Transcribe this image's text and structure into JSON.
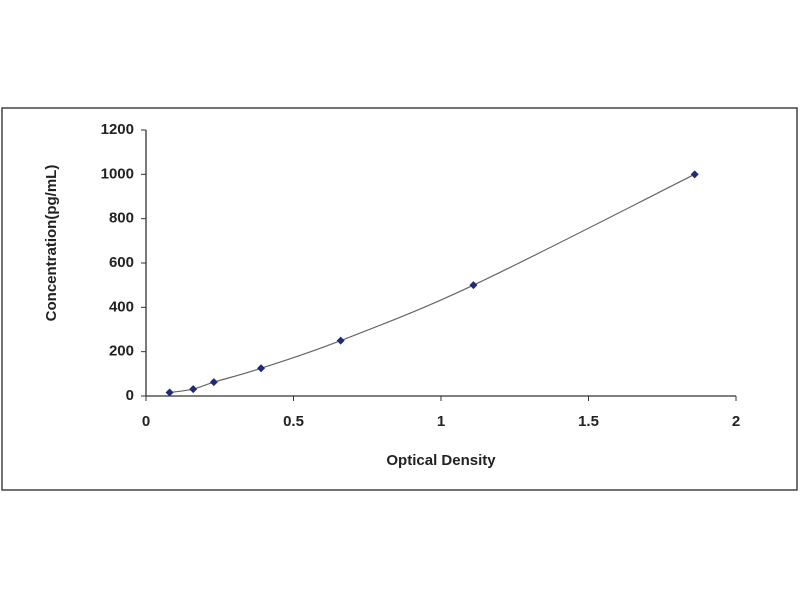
{
  "chart_data": {
    "type": "line",
    "x_label": "Optical Density",
    "y_label": "Concentration(pg/mL)",
    "series": [
      {
        "x": [
          0.08,
          0.16,
          0.23,
          0.39,
          0.66,
          1.11,
          1.86
        ],
        "values": [
          15.6,
          31.25,
          62.5,
          125,
          250,
          500,
          1000
        ],
        "color": "#1f2a78",
        "line_color": "#666666",
        "marker": "diamond",
        "smooth": true
      }
    ],
    "xlim": [
      0,
      2
    ],
    "xticks": [
      0,
      0.5,
      1,
      1.5,
      2
    ],
    "ylim": [
      0,
      1200
    ],
    "yticks": [
      0,
      200,
      400,
      600,
      800,
      1000,
      1200
    ],
    "grid": false
  }
}
